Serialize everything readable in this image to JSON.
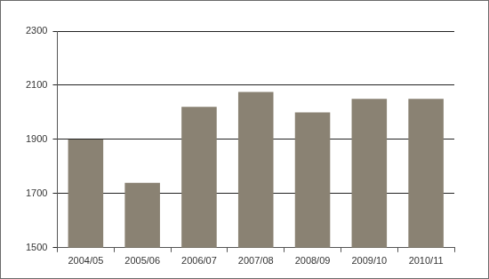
{
  "chart_data": {
    "type": "bar",
    "categories": [
      "2004/05",
      "2005/06",
      "2006/07",
      "2007/08",
      "2008/09",
      "2009/10",
      "2010/11"
    ],
    "values": [
      1900,
      1740,
      2020,
      2075,
      2000,
      2050,
      2050
    ],
    "color": "#8a8273",
    "ylim": [
      1500,
      2300
    ],
    "yticks": [
      1500,
      1700,
      1900,
      2100,
      2300
    ],
    "grid": true
  }
}
